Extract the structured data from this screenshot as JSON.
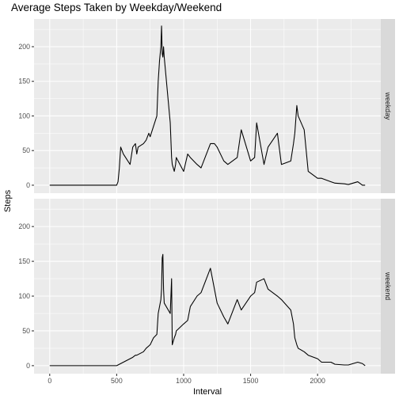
{
  "chart_data": {
    "type": "line",
    "title": "Average Steps Taken by Weekday/Weekend",
    "xlabel": "Interval",
    "ylabel": "Steps",
    "xlim": [
      -117,
      2472
    ],
    "ylim": [
      -11.5,
      240
    ],
    "x_ticks": [
      0,
      500,
      1000,
      1500,
      2000
    ],
    "y_ticks": [
      0,
      50,
      100,
      150,
      200
    ],
    "grid": true,
    "panels": [
      {
        "strip": "weekday",
        "series": [
          {
            "x": [
              0,
              50,
              100,
              150,
              200,
              250,
              300,
              350,
              400,
              450,
              500,
              510,
              520,
              530,
              540,
              550,
              600,
              620,
              640,
              650,
              660,
              700,
              720,
              730,
              740,
              750,
              800,
              810,
              820,
              830,
              835,
              840,
              845,
              850,
              855,
              900,
              910,
              915,
              930,
              940,
              945,
              1000,
              1030,
              1050,
              1100,
              1130,
              1200,
              1230,
              1250,
              1300,
              1330,
              1400,
              1430,
              1500,
              1530,
              1545,
              1600,
              1630,
              1700,
              1730,
              1800,
              1820,
              1830,
              1845,
              1855,
              1900,
              1930,
              2000,
              2030,
              2100,
              2130,
              2200,
              2230,
              2300,
              2335,
              2355
            ],
            "y": [
              0,
              0,
              0,
              0,
              0,
              0,
              0,
              0,
              0,
              0,
              0,
              5,
              25,
              55,
              50,
              45,
              30,
              55,
              60,
              45,
              55,
              60,
              65,
              70,
              75,
              70,
              100,
              150,
              180,
              200,
              230,
              190,
              185,
              200,
              185,
              90,
              40,
              30,
              20,
              30,
              40,
              20,
              45,
              40,
              30,
              25,
              60,
              60,
              55,
              35,
              30,
              40,
              80,
              35,
              40,
              90,
              30,
              55,
              75,
              30,
              35,
              60,
              75,
              115,
              100,
              80,
              20,
              10,
              10,
              5,
              3,
              2,
              1,
              5,
              0,
              0
            ]
          }
        ]
      },
      {
        "strip": "weekend",
        "series": [
          {
            "x": [
              0,
              50,
              100,
              150,
              200,
              250,
              300,
              350,
              400,
              450,
              500,
              550,
              600,
              620,
              640,
              650,
              700,
              720,
              750,
              775,
              800,
              810,
              820,
              830,
              835,
              840,
              845,
              850,
              855,
              900,
              910,
              915,
              930,
              940,
              945,
              1000,
              1030,
              1050,
              1100,
              1130,
              1200,
              1230,
              1250,
              1300,
              1330,
              1400,
              1430,
              1500,
              1530,
              1545,
              1600,
              1630,
              1700,
              1730,
              1800,
              1820,
              1830,
              1845,
              1855,
              1900,
              1930,
              2000,
              2030,
              2100,
              2130,
              2200,
              2230,
              2300,
              2335,
              2355
            ],
            "y": [
              0,
              0,
              0,
              0,
              0,
              0,
              0,
              0,
              0,
              0,
              0,
              5,
              10,
              12,
              15,
              15,
              20,
              25,
              30,
              40,
              45,
              75,
              85,
              95,
              110,
              155,
              160,
              110,
              90,
              75,
              125,
              30,
              40,
              45,
              50,
              60,
              65,
              85,
              100,
              105,
              140,
              110,
              90,
              70,
              60,
              95,
              80,
              100,
              105,
              120,
              125,
              110,
              100,
              95,
              80,
              60,
              40,
              30,
              25,
              20,
              15,
              10,
              5,
              5,
              2,
              1,
              1,
              5,
              3,
              0
            ]
          }
        ]
      }
    ]
  }
}
